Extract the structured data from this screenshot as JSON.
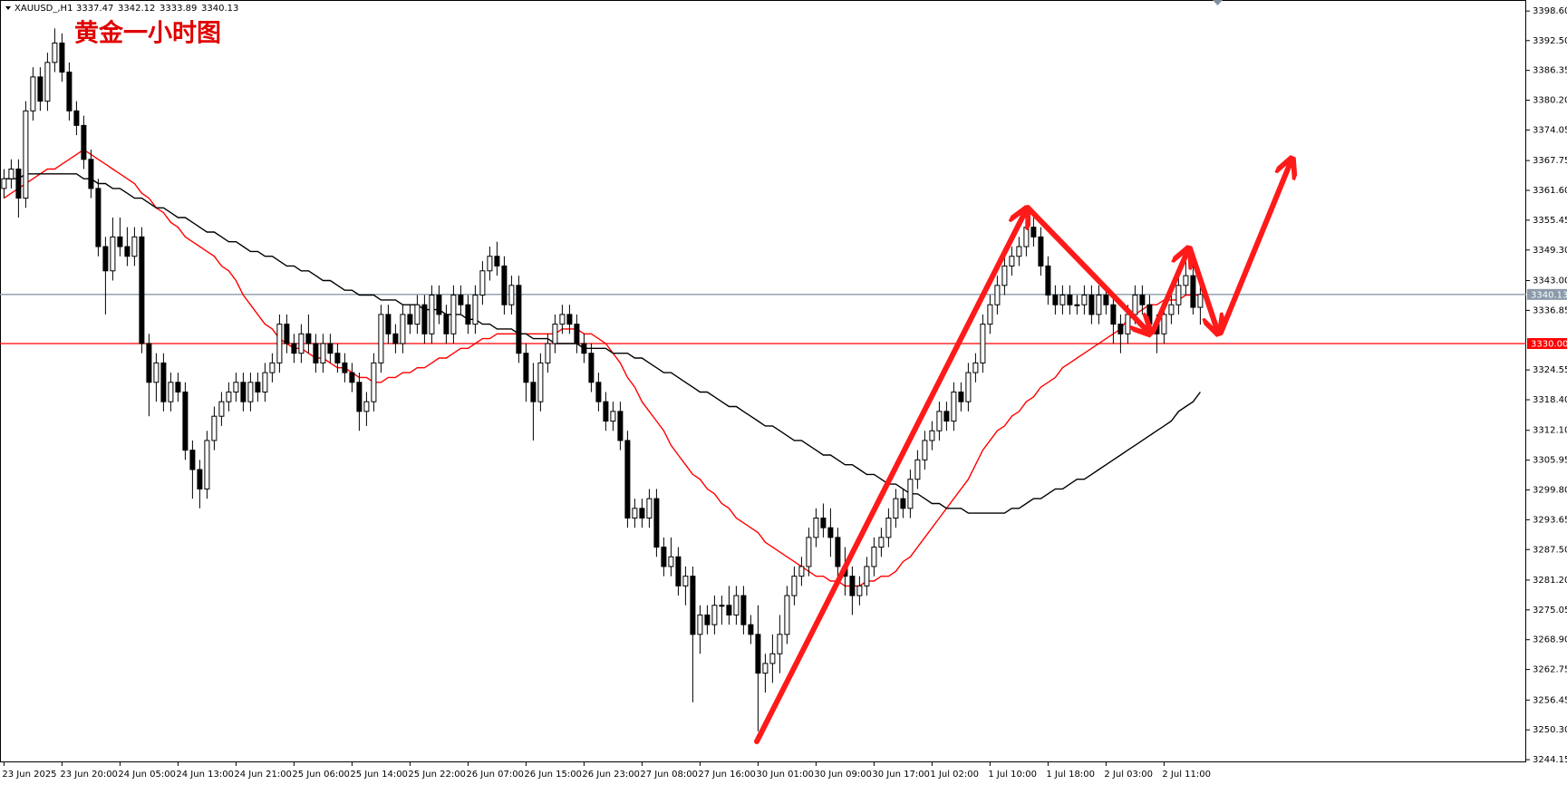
{
  "chart_data": {
    "type": "candlestick",
    "title": "黄金一小时图",
    "symbol": "XAUUSD_,H1",
    "ohlc": [
      3337.47,
      3342.12,
      3333.89,
      3340.13
    ],
    "categories": [
      "23 Jun 2025",
      null,
      null,
      null,
      null,
      null,
      null,
      null,
      "23 Jun 20:00",
      null,
      null,
      null,
      null,
      null,
      null,
      null,
      "24 Jun 05:00",
      null,
      null,
      null,
      null,
      null,
      null,
      null,
      "24 Jun 13:00",
      null,
      null,
      null,
      null,
      null,
      null,
      null,
      "24 Jun 21:00",
      null,
      null,
      null,
      null,
      null,
      null,
      null,
      "25 Jun 06:00",
      null,
      null,
      null,
      null,
      null,
      null,
      null,
      "25 Jun 14:00",
      null,
      null,
      null,
      null,
      null,
      null,
      null,
      "25 Jun 22:00",
      null,
      null,
      null,
      null,
      null,
      null,
      null,
      "26 Jun 07:00",
      null,
      null,
      null,
      null,
      null,
      null,
      null,
      "26 Jun 15:00",
      null,
      null,
      null,
      null,
      null,
      null,
      null,
      "26 Jun 23:00",
      null,
      null,
      null,
      null,
      null,
      null,
      null,
      "27 Jun 08:00",
      null,
      null,
      null,
      null,
      null,
      null,
      null,
      "27 Jun 16:00",
      null,
      null,
      null,
      null,
      null,
      null,
      null,
      "30 Jun 01:00",
      null,
      null,
      null,
      null,
      null,
      null,
      null,
      "30 Jun 09:00",
      null,
      null,
      null,
      null,
      null,
      null,
      null,
      "30 Jun 17:00",
      null,
      null,
      null,
      null,
      null,
      null,
      null,
      "1 Jul 02:00",
      null,
      null,
      null,
      null,
      null,
      null,
      null,
      "1 Jul 10:00",
      null,
      null,
      null,
      null,
      null,
      null,
      null,
      "1 Jul 18:00",
      null,
      null,
      null,
      null,
      null,
      null,
      null,
      "2 Jul 03:00",
      null,
      null,
      null,
      null,
      null,
      null,
      null,
      "2 Jul 11:00",
      null,
      null,
      null,
      null,
      null
    ],
    "open": [
      3362,
      3364,
      3366,
      3360,
      3378,
      3385,
      3380,
      3388,
      3392,
      3386,
      3378,
      3375,
      3368,
      3362,
      3350,
      3345,
      3352,
      3350,
      3348,
      3352,
      3330,
      3322,
      3326,
      3318,
      3322,
      3320,
      3308,
      3304,
      3300,
      3310,
      3315,
      3318,
      3320,
      3322,
      3318,
      3322,
      3320,
      3324,
      3326,
      3334,
      3330,
      3328,
      3332,
      3330,
      3326,
      3330,
      3328,
      3326,
      3324,
      3322,
      3316,
      3318,
      3326,
      3336,
      3332,
      3330,
      3336,
      3334,
      3338,
      3332,
      3340,
      3336,
      3332,
      3340,
      3338,
      3334,
      3340,
      3345,
      3348,
      3346,
      3338,
      3342,
      3328,
      3322,
      3318,
      3326,
      3330,
      3334,
      3336,
      3334,
      3330,
      3328,
      3322,
      3318,
      3314,
      3316,
      3310,
      3294,
      3296,
      3294,
      3298,
      3288,
      3284,
      3286,
      3280,
      3282,
      3270,
      3274,
      3272,
      3276,
      3276,
      3274,
      3278,
      3272,
      3270,
      3262,
      3264,
      3266,
      3270,
      3278,
      3282,
      3284,
      3290,
      3294,
      3292,
      3290,
      3284,
      3282,
      3278,
      3280,
      3284,
      3288,
      3290,
      3294,
      3298,
      3296,
      3302,
      3306,
      3310,
      3312,
      3316,
      3314,
      3320,
      3318,
      3324,
      3326,
      3334,
      3338,
      3342,
      3346,
      3348,
      3350,
      3354,
      3352,
      3346,
      3340,
      3338,
      3340,
      3338,
      3338,
      3340,
      3336,
      3340,
      3338,
      3334,
      3332,
      3336,
      3340,
      3338,
      3334,
      3332,
      3336,
      3338,
      3342,
      3344,
      3337.47
    ],
    "high": [
      3366,
      3368,
      3368,
      3380,
      3387,
      3387,
      3390,
      3395,
      3394,
      3388,
      3380,
      3377,
      3370,
      3364,
      3352,
      3356,
      3356,
      3354,
      3354,
      3354,
      3332,
      3328,
      3328,
      3324,
      3324,
      3322,
      3310,
      3306,
      3312,
      3317,
      3320,
      3322,
      3324,
      3324,
      3324,
      3324,
      3326,
      3328,
      3336,
      3336,
      3332,
      3334,
      3336,
      3332,
      3332,
      3332,
      3330,
      3328,
      3326,
      3324,
      3320,
      3328,
      3338,
      3338,
      3334,
      3338,
      3338,
      3340,
      3340,
      3342,
      3342,
      3338,
      3342,
      3342,
      3340,
      3342,
      3347,
      3350,
      3351,
      3348,
      3344,
      3344,
      3330,
      3326,
      3328,
      3332,
      3336,
      3338,
      3338,
      3336,
      3332,
      3330,
      3324,
      3320,
      3318,
      3318,
      3312,
      3298,
      3298,
      3300,
      3300,
      3290,
      3290,
      3288,
      3284,
      3284,
      3276,
      3276,
      3278,
      3278,
      3280,
      3280,
      3280,
      3274,
      3276,
      3266,
      3270,
      3274,
      3280,
      3284,
      3286,
      3292,
      3296,
      3297,
      3296,
      3292,
      3288,
      3284,
      3282,
      3286,
      3290,
      3292,
      3296,
      3300,
      3300,
      3304,
      3308,
      3312,
      3314,
      3318,
      3318,
      3322,
      3322,
      3326,
      3328,
      3336,
      3340,
      3344,
      3348,
      3350,
      3352,
      3358,
      3356,
      3354,
      3348,
      3342,
      3342,
      3342,
      3340,
      3342,
      3342,
      3342,
      3342,
      3340,
      3336,
      3338,
      3342,
      3342,
      3340,
      3336,
      3338,
      3340,
      3344,
      3347,
      3346,
      3342.12
    ],
    "low": [
      3360,
      3362,
      3356,
      3358,
      3376,
      3378,
      3378,
      3386,
      3384,
      3376,
      3373,
      3366,
      3360,
      3348,
      3336,
      3343,
      3348,
      3346,
      3346,
      3328,
      3315,
      3318,
      3316,
      3316,
      3318,
      3306,
      3298,
      3296,
      3298,
      3308,
      3313,
      3316,
      3318,
      3316,
      3316,
      3318,
      3318,
      3322,
      3324,
      3328,
      3326,
      3326,
      3328,
      3324,
      3324,
      3326,
      3324,
      3322,
      3320,
      3312,
      3313,
      3316,
      3324,
      3330,
      3328,
      3328,
      3332,
      3332,
      3330,
      3330,
      3334,
      3330,
      3330,
      3336,
      3332,
      3332,
      3338,
      3343,
      3344,
      3336,
      3336,
      3326,
      3318,
      3310,
      3316,
      3324,
      3328,
      3332,
      3332,
      3328,
      3326,
      3320,
      3316,
      3312,
      3312,
      3308,
      3292,
      3292,
      3292,
      3292,
      3286,
      3282,
      3282,
      3278,
      3276,
      3256,
      3266,
      3270,
      3270,
      3272,
      3272,
      3272,
      3270,
      3268,
      3250,
      3258,
      3260,
      3262,
      3268,
      3276,
      3280,
      3282,
      3288,
      3290,
      3286,
      3280,
      3278,
      3274,
      3276,
      3278,
      3282,
      3286,
      3288,
      3292,
      3294,
      3294,
      3300,
      3304,
      3308,
      3310,
      3312,
      3312,
      3316,
      3316,
      3322,
      3324,
      3332,
      3336,
      3340,
      3344,
      3346,
      3348,
      3350,
      3344,
      3338,
      3336,
      3336,
      3336,
      3336,
      3336,
      3334,
      3334,
      3336,
      3330,
      3328,
      3330,
      3334,
      3336,
      3332,
      3328,
      3330,
      3334,
      3336,
      3340,
      3336,
      3333.89
    ],
    "close": [
      3364,
      3366,
      3360,
      3378,
      3385,
      3380,
      3388,
      3392,
      3386,
      3378,
      3375,
      3368,
      3362,
      3350,
      3345,
      3352,
      3350,
      3348,
      3352,
      3330,
      3322,
      3326,
      3318,
      3322,
      3320,
      3308,
      3304,
      3300,
      3310,
      3315,
      3318,
      3320,
      3322,
      3318,
      3322,
      3320,
      3324,
      3326,
      3334,
      3330,
      3328,
      3332,
      3330,
      3326,
      3330,
      3328,
      3326,
      3324,
      3322,
      3316,
      3318,
      3326,
      3336,
      3332,
      3330,
      3336,
      3334,
      3338,
      3332,
      3340,
      3336,
      3332,
      3340,
      3338,
      3334,
      3340,
      3345,
      3348,
      3346,
      3338,
      3342,
      3328,
      3322,
      3318,
      3326,
      3330,
      3334,
      3336,
      3334,
      3330,
      3328,
      3322,
      3318,
      3314,
      3316,
      3310,
      3294,
      3296,
      3294,
      3298,
      3288,
      3284,
      3286,
      3280,
      3282,
      3270,
      3274,
      3272,
      3276,
      3276,
      3274,
      3278,
      3272,
      3270,
      3262,
      3264,
      3266,
      3270,
      3278,
      3282,
      3284,
      3290,
      3294,
      3292,
      3290,
      3284,
      3282,
      3278,
      3280,
      3284,
      3288,
      3290,
      3294,
      3298,
      3296,
      3302,
      3306,
      3310,
      3312,
      3316,
      3314,
      3320,
      3318,
      3324,
      3326,
      3334,
      3338,
      3342,
      3346,
      3348,
      3350,
      3354,
      3352,
      3346,
      3340,
      3338,
      3340,
      3338,
      3338,
      3340,
      3336,
      3340,
      3338,
      3334,
      3332,
      3336,
      3340,
      3338,
      3334,
      3332,
      3336,
      3338,
      3342,
      3344,
      3337.47,
      3340.13
    ],
    "color_up": "#ffffff",
    "color_down": "#000000",
    "series": [
      {
        "color": "#ff0000",
        "values": [
          3360,
          3361,
          3362,
          3363,
          3364,
          3365,
          3366,
          3366,
          3367,
          3368,
          3369,
          3370,
          3369,
          3368,
          3367,
          3366,
          3365,
          3364,
          3363,
          3361,
          3360,
          3358,
          3357,
          3355,
          3354,
          3352,
          3351,
          3350,
          3349,
          3348,
          3346,
          3345,
          3343,
          3340,
          3338,
          3336,
          3334,
          3333,
          3331,
          3330,
          3329,
          3329,
          3328,
          3327,
          3327,
          3326,
          3325,
          3325,
          3324,
          3323,
          3323,
          3322,
          3322,
          3323,
          3323,
          3324,
          3324,
          3325,
          3325,
          3326,
          3327,
          3327,
          3328,
          3329,
          3329,
          3330,
          3331,
          3331,
          3332,
          3332,
          3332,
          3332,
          3332,
          3332,
          3332,
          3332,
          3332,
          3333,
          3333,
          3333,
          3332,
          3332,
          3331,
          3330,
          3328,
          3326,
          3323,
          3321,
          3318,
          3316,
          3314,
          3312,
          3309,
          3307,
          3305,
          3303,
          3302,
          3300,
          3299,
          3297,
          3296,
          3294,
          3293,
          3292,
          3291,
          3289,
          3288,
          3287,
          3286,
          3285,
          3284,
          3283,
          3282,
          3282,
          3281,
          3281,
          3280,
          3280,
          3280,
          3281,
          3281,
          3282,
          3282,
          3283,
          3285,
          3286,
          3288,
          3290,
          3292,
          3294,
          3296,
          3298,
          3300,
          3302,
          3305,
          3308,
          3310,
          3312,
          3313,
          3315,
          3316,
          3318,
          3319,
          3321,
          3322,
          3323,
          3325,
          3326,
          3327,
          3328,
          3329,
          3330,
          3331,
          3332,
          3333,
          3335,
          3336,
          3337,
          3338,
          3338,
          3339,
          3339,
          3339,
          3340,
          3340,
          3340
        ]
      },
      {
        "color": "#000000",
        "values": [
          3364,
          3364,
          3364,
          3365,
          3365,
          3365,
          3365,
          3365,
          3365,
          3365,
          3365,
          3364,
          3364,
          3363,
          3363,
          3362,
          3362,
          3361,
          3360,
          3360,
          3359,
          3358,
          3358,
          3357,
          3356,
          3356,
          3355,
          3354,
          3353,
          3353,
          3352,
          3351,
          3351,
          3350,
          3349,
          3349,
          3348,
          3348,
          3347,
          3346,
          3346,
          3345,
          3345,
          3344,
          3343,
          3343,
          3342,
          3341,
          3341,
          3340,
          3340,
          3340,
          3339,
          3339,
          3339,
          3338,
          3338,
          3338,
          3337,
          3337,
          3337,
          3336,
          3336,
          3336,
          3335,
          3335,
          3334,
          3334,
          3333,
          3333,
          3333,
          3332,
          3332,
          3331,
          3331,
          3331,
          3330,
          3330,
          3330,
          3330,
          3329,
          3329,
          3329,
          3329,
          3328,
          3328,
          3328,
          3327,
          3327,
          3326,
          3325,
          3324,
          3324,
          3323,
          3322,
          3321,
          3320,
          3320,
          3319,
          3318,
          3317,
          3317,
          3316,
          3315,
          3314,
          3313,
          3313,
          3312,
          3311,
          3310,
          3310,
          3309,
          3308,
          3307,
          3307,
          3306,
          3305,
          3305,
          3304,
          3303,
          3303,
          3302,
          3301,
          3301,
          3300,
          3299,
          3299,
          3298,
          3297,
          3297,
          3296,
          3296,
          3296,
          3295,
          3295,
          3295,
          3295,
          3295,
          3295,
          3296,
          3296,
          3297,
          3298,
          3298,
          3299,
          3300,
          3300,
          3301,
          3302,
          3302,
          3303,
          3304,
          3305,
          3306,
          3307,
          3308,
          3309,
          3310,
          3311,
          3312,
          3313,
          3314,
          3316,
          3317,
          3318,
          3320
        ]
      }
    ],
    "hlines": [
      {
        "value": 3340.13,
        "label": "3340.13",
        "color": "#8a9aaa"
      },
      {
        "value": 3330,
        "label": "3330.00",
        "color": "#ff0000"
      }
    ],
    "ylim": [
      3243.6,
      3400.5
    ],
    "yticks": [
      {
        "value": 3398.6,
        "label": "3398.60"
      },
      {
        "value": 3392.5,
        "label": "3392.50"
      },
      3386.35,
      {
        "value": 3380.2,
        "label": "3380.20"
      },
      3374.05,
      3367.75,
      {
        "value": 3361.6,
        "label": "3361.60"
      },
      3355.45,
      {
        "value": 3349.3,
        "label": "3349.30"
      },
      {
        "value": 3343,
        "label": "3343.00"
      },
      3336.85,
      3324.55,
      {
        "value": 3318.4,
        "label": "3318.40"
      },
      {
        "value": 3312.1,
        "label": "3312.10"
      },
      3305.95,
      {
        "value": 3299.8,
        "label": "3299.80"
      },
      3293.65,
      {
        "value": 3287.5,
        "label": "3287.50"
      },
      {
        "value": 3281.2,
        "label": "3281.20"
      },
      3275.05,
      {
        "value": 3268.9,
        "label": "3268.90"
      },
      3262.75,
      3256.45,
      {
        "value": 3250.3,
        "label": "3250.30"
      },
      3244.15
    ]
  }
}
